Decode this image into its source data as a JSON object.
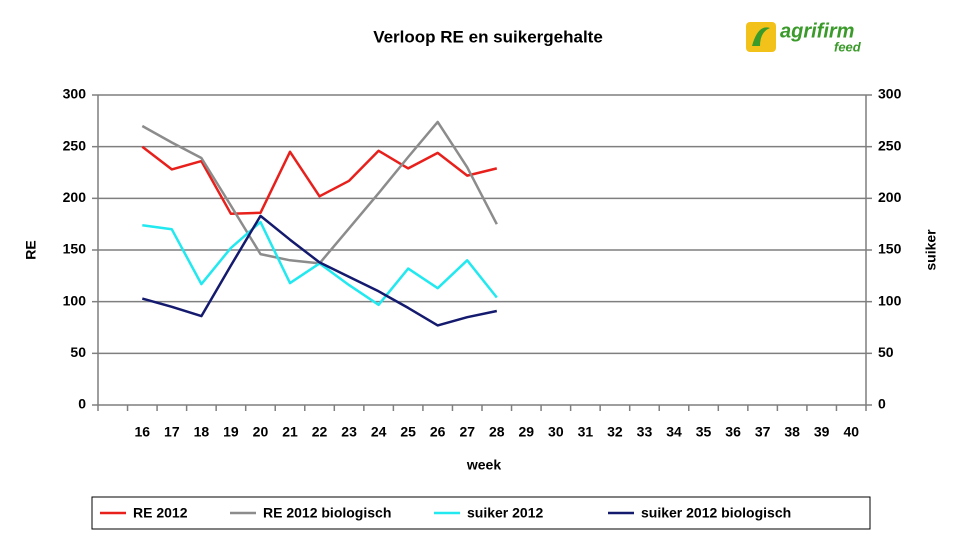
{
  "chart_data": {
    "type": "line",
    "title": "Verloop RE en suikergehalte",
    "logo": {
      "name": "agrifirm",
      "sub": "feed"
    },
    "xlabel": "week",
    "ylabel": "RE",
    "y2label": "suiker",
    "categories": [
      null,
      "16",
      "17",
      "18",
      "19",
      "20",
      "21",
      "22",
      "23",
      "24",
      "25",
      "26",
      "27",
      "28",
      "29",
      "30",
      "31",
      "32",
      "33",
      "34",
      "35",
      "36",
      "37",
      "38",
      "39",
      "40"
    ],
    "series": [
      {
        "name": "RE 2012",
        "color": "#e8201c",
        "values": [
          null,
          250,
          228,
          236,
          185,
          186,
          245,
          202,
          217,
          246,
          229,
          244,
          222,
          229,
          null,
          null,
          null,
          null,
          null,
          null,
          null,
          null,
          null,
          null,
          null,
          null
        ]
      },
      {
        "name": "RE 2012 biologisch",
        "color": "#8c8c8c",
        "values": [
          null,
          270,
          254,
          239,
          193,
          146,
          140,
          137,
          171,
          205,
          240,
          274,
          230,
          175,
          null,
          null,
          null,
          null,
          null,
          null,
          null,
          null,
          null,
          null,
          null,
          null
        ]
      },
      {
        "name": "suiker 2012",
        "color": "#22e8f0",
        "axis": "y2",
        "values": [
          null,
          174,
          170,
          117,
          152,
          177,
          118,
          137,
          116,
          97,
          132,
          113,
          140,
          104,
          null,
          null,
          null,
          null,
          null,
          null,
          null,
          null,
          null,
          null,
          null,
          null
        ]
      },
      {
        "name": "suiker 2012 biologisch",
        "color": "#141a6e",
        "axis": "y2",
        "values": [
          null,
          103,
          95,
          86,
          135,
          183,
          160,
          138,
          124,
          110,
          94,
          77,
          85,
          91,
          null,
          null,
          null,
          null,
          null,
          null,
          null,
          null,
          null,
          null,
          null,
          null
        ]
      }
    ],
    "ylim": [
      0,
      300
    ],
    "yticks": [
      0,
      50,
      100,
      150,
      200,
      250,
      300
    ],
    "y2lim": [
      0,
      300
    ],
    "y2ticks": [
      0,
      50,
      100,
      150,
      200,
      250,
      300
    ],
    "grid": true,
    "legend": "bottom"
  }
}
